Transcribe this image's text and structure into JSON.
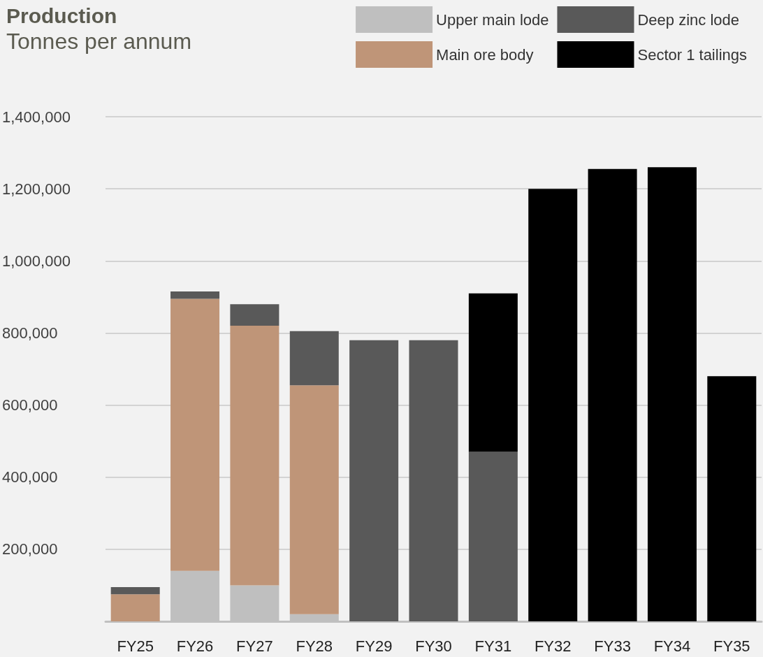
{
  "chart_data": {
    "type": "bar",
    "title": "Production",
    "subtitle": "Tonnes per annum",
    "stacked": true,
    "categories": [
      "FY25",
      "FY26",
      "FY27",
      "FY28",
      "FY29",
      "FY30",
      "FY31",
      "FY32",
      "FY33",
      "FY34",
      "FY35"
    ],
    "series": [
      {
        "name": "Upper main lode",
        "color": "#bfbfbf",
        "values": [
          null,
          140000,
          100000,
          20000,
          null,
          null,
          null,
          null,
          null,
          null,
          null
        ]
      },
      {
        "name": "Main ore body",
        "color": "#bf9578",
        "values": [
          75000,
          755000,
          720000,
          635000,
          null,
          null,
          null,
          null,
          null,
          null,
          null
        ]
      },
      {
        "name": "Deep zinc lode",
        "color": "#595959",
        "values": [
          20000,
          20000,
          60000,
          150000,
          780000,
          780000,
          470000,
          null,
          null,
          null,
          null
        ]
      },
      {
        "name": "Sector 1 tailings",
        "color": "#000000",
        "values": [
          null,
          null,
          null,
          null,
          null,
          null,
          440000,
          1200000,
          1255000,
          1260000,
          680000
        ]
      }
    ],
    "ylim": [
      0,
      1400000
    ],
    "yticks": [
      {
        "value": 0,
        "label": null
      },
      {
        "value": 200000,
        "label": "200,000"
      },
      {
        "value": 400000,
        "label": "400,000"
      },
      {
        "value": 600000,
        "label": "600,000"
      },
      {
        "value": 800000,
        "label": "800,000"
      },
      {
        "value": 1000000,
        "label": "1,000,000"
      },
      {
        "value": 1200000,
        "label": "1,200,000"
      },
      {
        "value": 1400000,
        "label": "1,400,000"
      }
    ],
    "grid": "y",
    "legend": "top right"
  }
}
